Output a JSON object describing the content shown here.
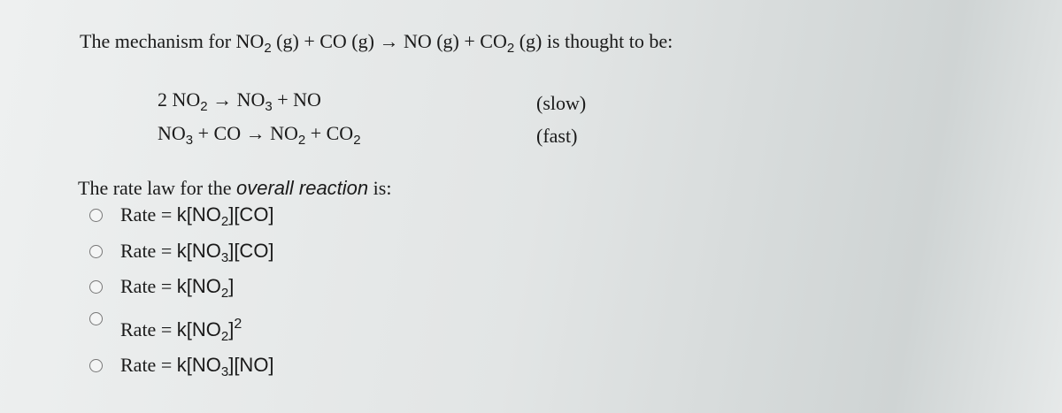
{
  "intro": [
    "The mechanism for NO",
    {
      "sub": "2"
    },
    " (g) + CO (g) → NO (g) + CO",
    {
      "sub": "2"
    },
    " (g) is thought to be:"
  ],
  "mechanism": [
    {
      "equation": [
        "2 NO",
        {
          "sub": "2"
        },
        " → NO",
        {
          "sub": "3"
        },
        " + NO"
      ],
      "note": "(slow)"
    },
    {
      "equation": [
        "NO",
        {
          "sub": "3"
        },
        " + CO → NO",
        {
          "sub": "2"
        },
        " + CO",
        {
          "sub": "2"
        }
      ],
      "note": "(fast)"
    }
  ],
  "prompt": [
    "The rate law for the ",
    {
      "em": "overall reaction"
    },
    " is:"
  ],
  "options": [
    [
      "Rate = ",
      "k[NO",
      {
        "sub": "2"
      },
      "][CO]"
    ],
    [
      "Rate = ",
      "k[NO",
      {
        "sub": "3"
      },
      "][CO]"
    ],
    [
      "Rate = ",
      "k[NO",
      {
        "sub": "2"
      },
      "]"
    ],
    [
      "Rate = ",
      "k[NO",
      {
        "sub": "2"
      },
      "]",
      {
        "sup": "2"
      }
    ],
    [
      "Rate = ",
      "k[NO",
      {
        "sub": "3"
      },
      "][NO]"
    ]
  ]
}
